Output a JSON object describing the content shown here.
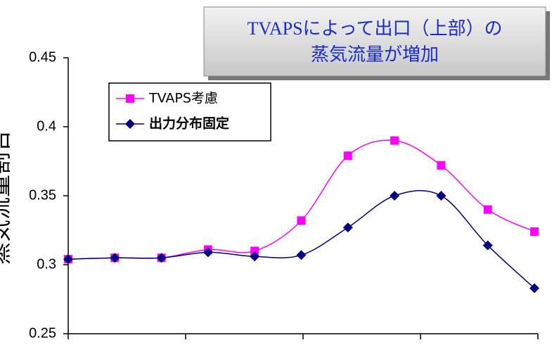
{
  "chart_data": {
    "type": "line",
    "ylabel": "蒸気流量割合",
    "annotation": [
      "TVAPSによって出口（上部）の",
      "蒸気流量が増加"
    ],
    "categories": [
      null,
      null,
      null,
      null,
      null,
      null,
      null,
      null,
      null,
      null,
      null
    ],
    "series": [
      {
        "name": "TVAPS考慮",
        "color": "#ff00ff",
        "marker": "square",
        "values": [
          0.304,
          0.305,
          0.305,
          0.311,
          0.31,
          0.332,
          0.379,
          0.39,
          0.372,
          0.34,
          0.324
        ]
      },
      {
        "name": "出力分布固定",
        "color": "#000080",
        "marker": "diamond",
        "values": [
          0.304,
          0.305,
          0.305,
          0.309,
          0.306,
          0.307,
          0.327,
          0.35,
          0.35,
          0.314,
          0.283
        ]
      }
    ],
    "ylim": [
      0.25,
      0.45
    ],
    "yticks": [
      0.25,
      0.3,
      0.35,
      0.4,
      0.45
    ],
    "grid": false,
    "legend": "upper left"
  }
}
